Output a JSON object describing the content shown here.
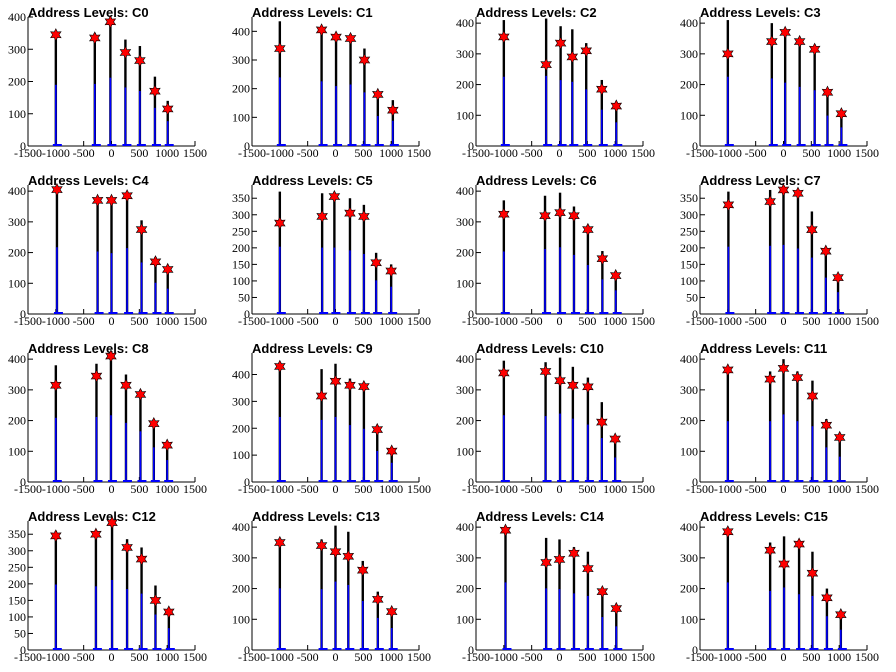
{
  "chart_data": [
    {
      "type": "histogram",
      "title": "Address Levels: C0",
      "xlim": [
        -1500,
        1500
      ],
      "ylim": [
        0,
        400
      ],
      "yticks": [
        0,
        100,
        200,
        300,
        400
      ],
      "xticks": [
        -1500,
        -1000,
        -500,
        0,
        500,
        1000,
        1500
      ],
      "markers": {
        "x": [
          -1000,
          -300,
          -20,
          250,
          510,
          780,
          1010
        ],
        "y": [
          345,
          335,
          385,
          290,
          265,
          170,
          115
        ]
      },
      "bars": {
        "x": [
          -1000,
          -300,
          -20,
          250,
          510,
          780,
          1010
        ],
        "y": [
          345,
          350,
          385,
          330,
          310,
          215,
          140
        ]
      }
    },
    {
      "type": "histogram",
      "title": "Address Levels: C1",
      "xlim": [
        -1500,
        1500
      ],
      "ylim": [
        0,
        450
      ],
      "yticks": [
        0,
        100,
        200,
        300,
        400
      ],
      "xticks": [
        -1500,
        -1000,
        -500,
        0,
        500,
        1000,
        1500
      ],
      "markers": {
        "x": [
          -1000,
          -250,
          10,
          270,
          520,
          760,
          1030
        ],
        "y": [
          340,
          405,
          380,
          375,
          300,
          180,
          125
        ]
      },
      "bars": {
        "x": [
          -1000,
          -250,
          10,
          270,
          520,
          760,
          1030
        ],
        "y": [
          435,
          410,
          380,
          390,
          340,
          190,
          160
        ]
      }
    },
    {
      "type": "histogram",
      "title": "Address Levels: C2",
      "xlim": [
        -1500,
        1500
      ],
      "ylim": [
        0,
        420
      ],
      "yticks": [
        0,
        100,
        200,
        300,
        400
      ],
      "xticks": [
        -1500,
        -1000,
        -500,
        0,
        500,
        1000,
        1500
      ],
      "markers": {
        "x": [
          -1000,
          -240,
          20,
          230,
          480,
          760,
          1020
        ],
        "y": [
          355,
          265,
          335,
          290,
          310,
          185,
          130
        ]
      },
      "bars": {
        "x": [
          -1000,
          -240,
          20,
          230,
          480,
          760,
          1020
        ],
        "y": [
          410,
          415,
          390,
          380,
          335,
          215,
          140
        ]
      }
    },
    {
      "type": "histogram",
      "title": "Address Levels: C3",
      "xlim": [
        -1500,
        1500
      ],
      "ylim": [
        0,
        420
      ],
      "yticks": [
        0,
        100,
        200,
        300,
        400
      ],
      "xticks": [
        -1500,
        -1000,
        -500,
        0,
        500,
        1000,
        1500
      ],
      "markers": {
        "x": [
          -1000,
          -210,
          30,
          290,
          560,
          790,
          1040
        ],
        "y": [
          300,
          340,
          370,
          340,
          315,
          175,
          105
        ]
      },
      "bars": {
        "x": [
          -1000,
          -210,
          30,
          290,
          560,
          790,
          1040
        ],
        "y": [
          410,
          400,
          375,
          350,
          330,
          180,
          110
        ]
      }
    },
    {
      "type": "histogram",
      "title": "Address Levels: C4",
      "xlim": [
        -1500,
        1500
      ],
      "ylim": [
        0,
        420
      ],
      "yticks": [
        0,
        100,
        200,
        300,
        400
      ],
      "xticks": [
        -1500,
        -1000,
        -500,
        0,
        500,
        1000,
        1500
      ],
      "markers": {
        "x": [
          -980,
          -250,
          0,
          280,
          540,
          790,
          1010
        ],
        "y": [
          405,
          370,
          370,
          385,
          275,
          170,
          145
        ]
      },
      "bars": {
        "x": [
          -980,
          -250,
          0,
          280,
          540,
          790,
          1010
        ],
        "y": [
          395,
          370,
          360,
          390,
          305,
          185,
          150
        ]
      }
    },
    {
      "type": "histogram",
      "title": "Address Levels: C5",
      "xlim": [
        -1500,
        1500
      ],
      "ylim": [
        0,
        390
      ],
      "yticks": [
        0,
        50,
        100,
        150,
        200,
        250,
        300,
        350
      ],
      "xticks": [
        -1500,
        -1000,
        -500,
        0,
        500,
        1000,
        1500
      ],
      "markers": {
        "x": [
          -1000,
          -240,
          -20,
          260,
          510,
          730,
          1000
        ],
        "y": [
          275,
          295,
          355,
          305,
          295,
          155,
          130
        ]
      },
      "bars": {
        "x": [
          -1000,
          -240,
          -20,
          260,
          510,
          730,
          1000
        ],
        "y": [
          370,
          365,
          365,
          350,
          330,
          185,
          150
        ]
      }
    },
    {
      "type": "histogram",
      "title": "Address Levels: C6",
      "xlim": [
        -1500,
        1500
      ],
      "ylim": [
        0,
        420
      ],
      "yticks": [
        0,
        100,
        200,
        300,
        400
      ],
      "xticks": [
        -1500,
        -1000,
        -500,
        0,
        500,
        1000,
        1500
      ],
      "markers": {
        "x": [
          -1000,
          -260,
          10,
          260,
          510,
          770,
          1010
        ],
        "y": [
          325,
          320,
          330,
          320,
          275,
          180,
          125
        ]
      },
      "bars": {
        "x": [
          -1000,
          -260,
          10,
          260,
          510,
          770,
          1010
        ],
        "y": [
          370,
          385,
          395,
          350,
          290,
          205,
          140
        ]
      }
    },
    {
      "type": "histogram",
      "title": "Address Levels: C7",
      "xlim": [
        -1500,
        1500
      ],
      "ylim": [
        0,
        390
      ],
      "yticks": [
        0,
        50,
        100,
        150,
        200,
        250,
        300,
        350
      ],
      "xticks": [
        -1500,
        -1000,
        -500,
        0,
        500,
        1000,
        1500
      ],
      "markers": {
        "x": [
          -990,
          -240,
          0,
          260,
          510,
          760,
          980
        ],
        "y": [
          330,
          340,
          375,
          365,
          255,
          190,
          110
        ]
      },
      "bars": {
        "x": [
          -990,
          -240,
          0,
          260,
          510,
          760,
          980
        ],
        "y": [
          370,
          375,
          380,
          360,
          310,
          200,
          120
        ]
      }
    },
    {
      "type": "histogram",
      "title": "Address Levels: C8",
      "xlim": [
        -1500,
        1500
      ],
      "ylim": [
        0,
        420
      ],
      "yticks": [
        0,
        100,
        200,
        300,
        400
      ],
      "xticks": [
        -1500,
        -1000,
        -500,
        0,
        500,
        1000,
        1500
      ],
      "markers": {
        "x": [
          -1000,
          -270,
          -10,
          260,
          520,
          760,
          1000
        ],
        "y": [
          315,
          345,
          410,
          315,
          285,
          190,
          120
        ]
      },
      "bars": {
        "x": [
          -1000,
          -270,
          -10,
          260,
          520,
          760,
          1000
        ],
        "y": [
          380,
          385,
          395,
          350,
          300,
          205,
          130
        ]
      }
    },
    {
      "type": "histogram",
      "title": "Address Levels: C9",
      "xlim": [
        -1500,
        1500
      ],
      "ylim": [
        0,
        480
      ],
      "yticks": [
        0,
        100,
        200,
        300,
        400
      ],
      "xticks": [
        -1500,
        -1000,
        -500,
        0,
        500,
        1000,
        1500
      ],
      "markers": {
        "x": [
          -1000,
          -250,
          0,
          260,
          510,
          750,
          1010
        ],
        "y": [
          430,
          320,
          375,
          360,
          355,
          195,
          115
        ]
      },
      "bars": {
        "x": [
          -1000,
          -250,
          0,
          260,
          510,
          750,
          1010
        ],
        "y": [
          440,
          420,
          440,
          385,
          360,
          210,
          130
        ]
      }
    },
    {
      "type": "histogram",
      "title": "Address Levels: C10",
      "xlim": [
        -1500,
        1500
      ],
      "ylim": [
        0,
        420
      ],
      "yticks": [
        0,
        100,
        200,
        300,
        400
      ],
      "xticks": [
        -1500,
        -1000,
        -500,
        0,
        500,
        1000,
        1500
      ],
      "markers": {
        "x": [
          -1000,
          -250,
          10,
          240,
          510,
          760,
          1000
        ],
        "y": [
          355,
          360,
          330,
          315,
          310,
          195,
          140
        ]
      },
      "bars": {
        "x": [
          -1000,
          -250,
          10,
          240,
          510,
          760,
          1000
        ],
        "y": [
          395,
          390,
          405,
          375,
          340,
          260,
          145
        ]
      }
    },
    {
      "type": "histogram",
      "title": "Address Levels: C11",
      "xlim": [
        -1500,
        1500
      ],
      "ylim": [
        0,
        420
      ],
      "yticks": [
        0,
        100,
        200,
        300,
        400
      ],
      "xticks": [
        -1500,
        -1000,
        -500,
        0,
        500,
        1000,
        1500
      ],
      "markers": {
        "x": [
          -1000,
          -240,
          0,
          250,
          520,
          770,
          1010
        ],
        "y": [
          365,
          335,
          370,
          340,
          280,
          185,
          145
        ]
      },
      "bars": {
        "x": [
          -1000,
          -240,
          0,
          250,
          520,
          770,
          1010
        ],
        "y": [
          360,
          360,
          400,
          360,
          330,
          205,
          150
        ]
      }
    },
    {
      "type": "histogram",
      "title": "Address Levels: C12",
      "xlim": [
        -1500,
        1500
      ],
      "ylim": [
        0,
        390
      ],
      "yticks": [
        0,
        50,
        100,
        150,
        200,
        250,
        300,
        350
      ],
      "xticks": [
        -1500,
        -1000,
        -500,
        0,
        500,
        1000,
        1500
      ],
      "markers": {
        "x": [
          -1000,
          -280,
          10,
          280,
          540,
          790,
          1030
        ],
        "y": [
          345,
          350,
          385,
          310,
          275,
          150,
          115
        ]
      },
      "bars": {
        "x": [
          -1000,
          -280,
          10,
          280,
          540,
          790,
          1030
        ],
        "y": [
          360,
          350,
          385,
          335,
          310,
          195,
          120
        ]
      }
    },
    {
      "type": "histogram",
      "title": "Address Levels: C13",
      "xlim": [
        -1500,
        1500
      ],
      "ylim": [
        0,
        420
      ],
      "yticks": [
        0,
        100,
        200,
        300,
        400
      ],
      "xticks": [
        -1500,
        -1000,
        -500,
        0,
        500,
        1000,
        1500
      ],
      "markers": {
        "x": [
          -1000,
          -250,
          0,
          230,
          490,
          760,
          1010
        ],
        "y": [
          350,
          340,
          320,
          305,
          260,
          165,
          125
        ]
      },
      "bars": {
        "x": [
          -1000,
          -250,
          0,
          230,
          490,
          760,
          1010
        ],
        "y": [
          365,
          360,
          405,
          385,
          290,
          190,
          130
        ]
      }
    },
    {
      "type": "histogram",
      "title": "Address Levels: C14",
      "xlim": [
        -1500,
        1500
      ],
      "ylim": [
        0,
        420
      ],
      "yticks": [
        0,
        100,
        200,
        300,
        400
      ],
      "xticks": [
        -1500,
        -1000,
        -500,
        0,
        500,
        1000,
        1500
      ],
      "markers": {
        "x": [
          -970,
          -240,
          0,
          260,
          510,
          770,
          1020
        ],
        "y": [
          390,
          285,
          295,
          315,
          265,
          190,
          135
        ]
      },
      "bars": {
        "x": [
          -970,
          -240,
          0,
          260,
          510,
          770,
          1020
        ],
        "y": [
          400,
          365,
          360,
          335,
          320,
          195,
          140
        ]
      }
    },
    {
      "type": "histogram",
      "title": "Address Levels: C15",
      "xlim": [
        -1500,
        1500
      ],
      "ylim": [
        0,
        420
      ],
      "yticks": [
        0,
        100,
        200,
        300,
        400
      ],
      "xticks": [
        -1500,
        -1000,
        -500,
        0,
        500,
        1000,
        1500
      ],
      "markers": {
        "x": [
          -1000,
          -240,
          10,
          280,
          520,
          780,
          1030
        ],
        "y": [
          385,
          325,
          280,
          345,
          250,
          170,
          115
        ]
      },
      "bars": {
        "x": [
          -1000,
          -240,
          10,
          280,
          520,
          780,
          1030
        ],
        "y": [
          400,
          350,
          370,
          330,
          320,
          200,
          120
        ]
      }
    }
  ],
  "colors": {
    "bar": "#0000ff",
    "bar_outline": "#000000",
    "marker": "#ff0000",
    "axis": "#000000"
  }
}
